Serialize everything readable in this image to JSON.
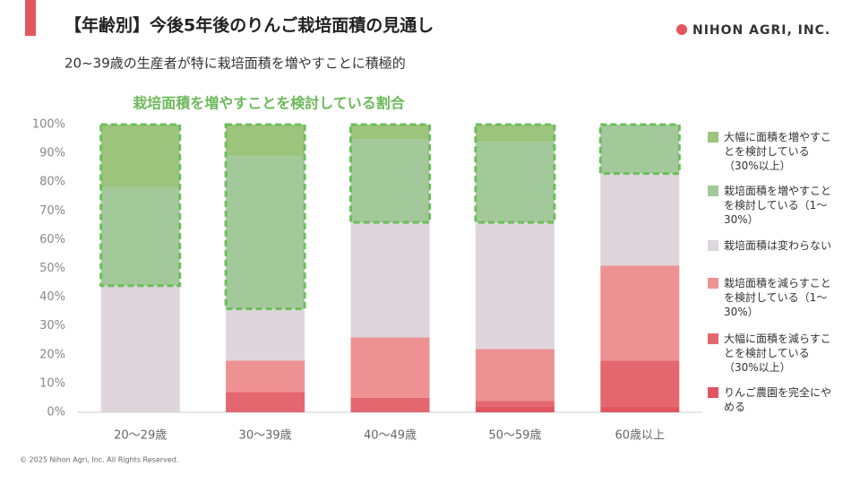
{
  "header": {
    "title": "【年齢別】今後5年後のりんご栽培面積の見通し",
    "subtitle": "20~39歳の生産者が特に栽培面積を増やすことに積極的",
    "logo": "NIHON AGRI, INC."
  },
  "footer": "© 2025 Nihon Agri, Inc. All Rights Reserved.",
  "chart_data": {
    "type": "stacked_bar",
    "annotation": "栽培面積を増やすことを検討している割合",
    "categories": [
      "20～29歳",
      "30～39歳",
      "40～49歳",
      "50～59歳",
      "60歳以上"
    ],
    "series": [
      {
        "name": "りんご農園を完全にやめる",
        "color": "#df5660",
        "values": [
          0,
          0,
          0,
          2,
          2
        ]
      },
      {
        "name": "大幅に面積を減らすことを検討している（30%以上）",
        "color": "#e4676f",
        "values": [
          0,
          7,
          5,
          2,
          16
        ]
      },
      {
        "name": "栽培面積を減らすことを検討している（1～30%）",
        "color": "#ee9193",
        "values": [
          0,
          11,
          21,
          18,
          33
        ]
      },
      {
        "name": "栽培面積は変わらない",
        "color": "#ded6dc",
        "values": [
          44,
          18,
          40,
          44,
          32
        ]
      },
      {
        "name": "栽培面積を増やすことを検討している（1～30%）",
        "color": "#a3c99b",
        "values": [
          34,
          53,
          29,
          28,
          17
        ]
      },
      {
        "name": "大幅に面積を増やすことを検討している（30%以上）",
        "color": "#9dc47c",
        "values": [
          22,
          11,
          5,
          6,
          0
        ]
      }
    ],
    "ylim": [
      0,
      100
    ],
    "yticks": [
      {
        "value": 0,
        "label": "0%"
      },
      {
        "value": 10,
        "label": "10%"
      },
      {
        "value": 20,
        "label": "20%"
      },
      {
        "value": 30,
        "label": "30%"
      },
      {
        "value": 40,
        "label": "40%"
      },
      {
        "value": 50,
        "label": "50%"
      },
      {
        "value": 60,
        "label": "60%"
      },
      {
        "value": 70,
        "label": "70%"
      },
      {
        "value": 80,
        "label": "80%"
      },
      {
        "value": 90,
        "label": "90%"
      },
      {
        "value": 100,
        "label": "100%"
      }
    ],
    "highlight_color": "#6cbf5a"
  }
}
